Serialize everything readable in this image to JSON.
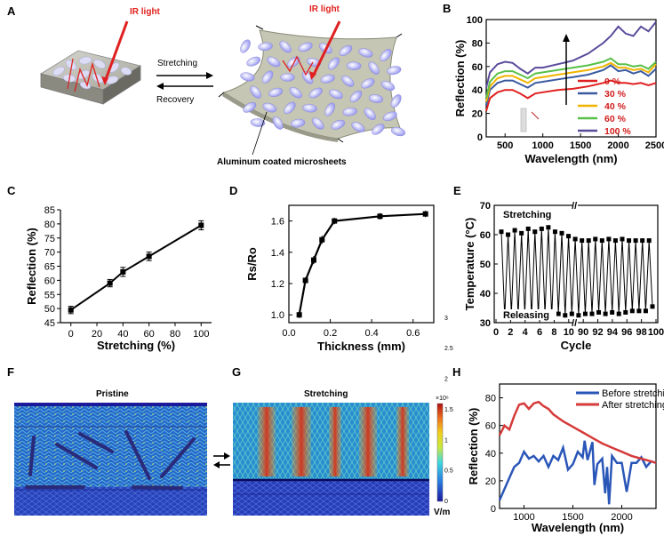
{
  "panel_labels": {
    "A": "A",
    "B": "B",
    "C": "C",
    "D": "D",
    "E": "E",
    "F": "F",
    "G": "G",
    "H": "H"
  },
  "schematic": {
    "ir_label_left": "IR light",
    "ir_label_right": "IR light",
    "stretching_label": "Stretching",
    "recovery_label": "Recovery",
    "microsheet_label": "Aluminum coated microsheets"
  },
  "sim": {
    "pristine_title": "Pristine",
    "stretching_title": "Stretching",
    "colorbar_exp": "×10⁶",
    "colorbar_unit": "V/m",
    "colorbar_ticks": [
      "0",
      "0.5",
      "1",
      "1.5",
      "2",
      "2.5",
      "3"
    ]
  },
  "colors": {
    "s0": "#e02020",
    "s30": "#3a5aa0",
    "s40": "#f0b400",
    "s60": "#58c048",
    "s100": "#5a4a9a",
    "before": "#2a56b8",
    "after": "#d63a3a"
  },
  "chart_data": [
    {
      "id": "B",
      "type": "line",
      "xlabel": "Wavelength (nm)",
      "ylabel": "Reflection (%)",
      "xlim": [
        250,
        2500
      ],
      "ylim": [
        0,
        100
      ],
      "xticks": [
        "500",
        "1000",
        "1500",
        "2000",
        "2500"
      ],
      "yticks": [
        "0",
        "20",
        "40",
        "60",
        "80",
        "100"
      ],
      "legend_title_note": "",
      "series": [
        {
          "name": "0 %",
          "color": "#e02020",
          "x": [
            250,
            300,
            400,
            500,
            600,
            700,
            800,
            900,
            1000,
            1200,
            1400,
            1600,
            1800,
            1900,
            2000,
            2100,
            2200,
            2300,
            2400,
            2500
          ],
          "y": [
            22,
            33,
            38,
            40,
            40,
            37,
            33,
            37,
            38,
            40,
            41,
            43,
            46,
            48,
            46,
            46,
            45,
            46,
            44,
            46
          ]
        },
        {
          "name": "30 %",
          "color": "#3a5aa0",
          "x": [
            250,
            300,
            400,
            500,
            600,
            700,
            800,
            900,
            1000,
            1200,
            1400,
            1600,
            1800,
            1900,
            2000,
            2100,
            2200,
            2300,
            2400,
            2500
          ],
          "y": [
            27,
            40,
            46,
            48,
            48,
            45,
            42,
            46,
            47,
            49,
            51,
            53,
            57,
            61,
            56,
            57,
            54,
            56,
            52,
            58
          ]
        },
        {
          "name": "40 %",
          "color": "#f0b400",
          "x": [
            250,
            300,
            400,
            500,
            600,
            700,
            800,
            900,
            1000,
            1200,
            1400,
            1600,
            1800,
            1900,
            2000,
            2100,
            2200,
            2300,
            2400,
            2500
          ],
          "y": [
            30,
            43,
            50,
            52,
            52,
            49,
            46,
            50,
            51,
            53,
            55,
            57,
            60,
            63,
            59,
            59,
            57,
            58,
            55,
            62
          ]
        },
        {
          "name": "60 %",
          "color": "#58c048",
          "x": [
            250,
            300,
            400,
            500,
            600,
            700,
            800,
            900,
            1000,
            1200,
            1400,
            1600,
            1800,
            1900,
            2000,
            2100,
            2200,
            2300,
            2400,
            2500
          ],
          "y": [
            33,
            47,
            54,
            56,
            56,
            53,
            50,
            54,
            55,
            57,
            59,
            61,
            64,
            67,
            62,
            62,
            60,
            61,
            58,
            64
          ]
        },
        {
          "name": "100 %",
          "color": "#5a4a9a",
          "x": [
            250,
            300,
            400,
            500,
            600,
            700,
            800,
            900,
            1000,
            1200,
            1400,
            1600,
            1800,
            1900,
            2000,
            2100,
            2200,
            2300,
            2400,
            2500
          ],
          "y": [
            42,
            55,
            62,
            64,
            63,
            58,
            54,
            59,
            59,
            62,
            65,
            71,
            80,
            86,
            94,
            88,
            86,
            94,
            90,
            98
          ]
        }
      ]
    },
    {
      "id": "C",
      "type": "line",
      "xlabel": "Stretching (%)",
      "ylabel": "Reflection (%)",
      "xlim": [
        -8,
        108
      ],
      "ylim": [
        45,
        85
      ],
      "xticks": [
        "0",
        "20",
        "40",
        "60",
        "80",
        "100"
      ],
      "yticks": [
        "45",
        "50",
        "55",
        "60",
        "65",
        "70",
        "75",
        "80",
        "85"
      ],
      "x": [
        0,
        30,
        40,
        60,
        100
      ],
      "y": [
        49.5,
        59,
        63,
        68.5,
        79.5
      ],
      "err": [
        1.3,
        1.3,
        1.6,
        1.5,
        1.6
      ]
    },
    {
      "id": "D",
      "type": "line",
      "xlabel": "Thickness (mm)",
      "ylabel": "Rs/Ro",
      "xlim": [
        0,
        0.7
      ],
      "ylim": [
        0.95,
        1.7
      ],
      "xticks": [
        "0.0",
        "0.2",
        "0.4",
        "0.6"
      ],
      "yticks": [
        "1.0",
        "1.2",
        "1.4",
        "1.6"
      ],
      "x": [
        0.05,
        0.08,
        0.12,
        0.16,
        0.22,
        0.44,
        0.66
      ],
      "y": [
        1.0,
        1.22,
        1.35,
        1.48,
        1.6,
        1.63,
        1.645
      ],
      "err": [
        0.015,
        0.015,
        0.02,
        0.02,
        0.015,
        0.015,
        0.015
      ]
    },
    {
      "id": "E",
      "type": "line",
      "xlabel": "Cycle",
      "ylabel": "Temperature (°C)",
      "ylim": [
        30,
        70
      ],
      "xticks": [
        "0",
        "2",
        "4",
        "6",
        "8",
        "10",
        "90",
        "92",
        "94",
        "96",
        "98",
        "100"
      ],
      "yticks": [
        "30",
        "40",
        "50",
        "60",
        "70"
      ],
      "stretching_label": "Stretching",
      "releasing_label": "Releasing",
      "highs": [
        61,
        60,
        61.5,
        60.5,
        62,
        61,
        62,
        62.5,
        61,
        60.5,
        59.5,
        58.5,
        58,
        58,
        58.5,
        58,
        58.5,
        58,
        58.5,
        58,
        58,
        58,
        58
      ],
      "lows": [
        32,
        33,
        32.5,
        33,
        32,
        32.5,
        33,
        32,
        33,
        32.5,
        33,
        32.5,
        33,
        33,
        33.5,
        33,
        33.5,
        33,
        33.5,
        34,
        34,
        34,
        35.5
      ]
    },
    {
      "id": "H",
      "type": "line",
      "xlabel": "Wavelength (nm)",
      "ylabel": "Reflection (%)",
      "xlim": [
        750,
        2350
      ],
      "ylim": [
        0,
        90
      ],
      "xticks": [
        "1000",
        "1500",
        "2000"
      ],
      "yticks": [
        "0",
        "20",
        "40",
        "60",
        "80"
      ],
      "series": [
        {
          "name": "Before stretching",
          "color": "#2a56b8",
          "x": [
            750,
            800,
            850,
            900,
            950,
            1000,
            1050,
            1100,
            1150,
            1200,
            1250,
            1300,
            1350,
            1400,
            1450,
            1500,
            1550,
            1600,
            1620,
            1650,
            1700,
            1720,
            1750,
            1800,
            1830,
            1850,
            1870,
            1900,
            1950,
            2000,
            2050,
            2100,
            2150,
            2200,
            2250,
            2300,
            2350
          ],
          "y": [
            6,
            14,
            22,
            30,
            33,
            41,
            36,
            38,
            34,
            38,
            30,
            38,
            35,
            44,
            28,
            32,
            41,
            37,
            49,
            35,
            48,
            17,
            32,
            36,
            11,
            30,
            3,
            38,
            33,
            33,
            12,
            33,
            33,
            37,
            30,
            34,
            33
          ]
        },
        {
          "name": "After stretching",
          "color": "#d63a3a",
          "x": [
            750,
            780,
            800,
            850,
            900,
            950,
            1000,
            1050,
            1100,
            1150,
            1200,
            1250,
            1300,
            1400,
            1500,
            1600,
            1700,
            1800,
            1900,
            2000,
            2100,
            2200,
            2300,
            2350
          ],
          "y": [
            53,
            57,
            60,
            57,
            67,
            75,
            76,
            72,
            76,
            77,
            74,
            72,
            68,
            63,
            59,
            55,
            51,
            47,
            44,
            41,
            38,
            36,
            34,
            33
          ]
        }
      ]
    }
  ]
}
